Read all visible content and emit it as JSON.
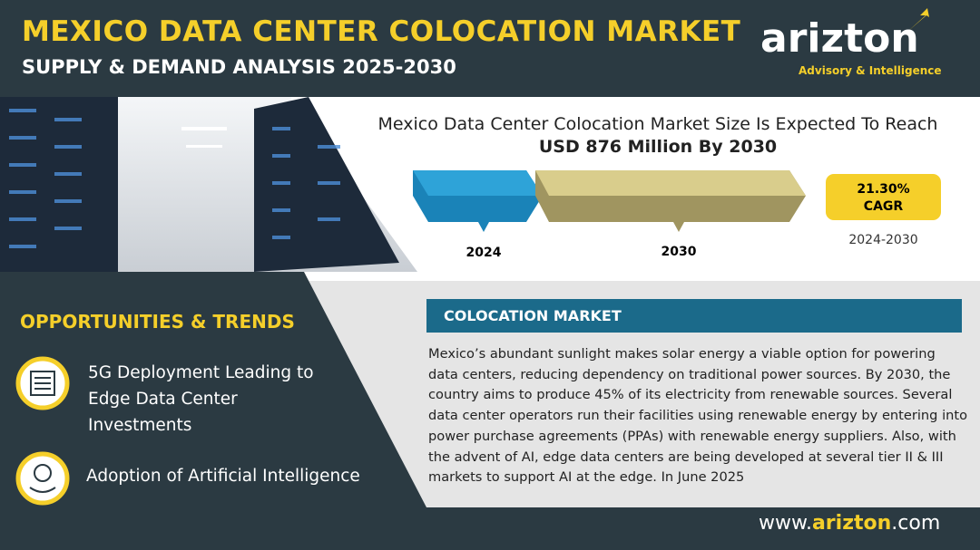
{
  "header": {
    "title": "MEXICO DATA CENTER COLOCATION MARKET",
    "subtitle": "SUPPLY & DEMAND ANALYSIS 2025-2030"
  },
  "logo": {
    "name_start": "arizt",
    "name_end": "on",
    "tagline": "Advisory & Intelligence"
  },
  "market_size": {
    "headline": "Mexico Data Center Colocation Market Size Is Expected To Reach",
    "value": "USD 876 Million By 2030",
    "start_year": "2024",
    "end_year": "2030",
    "cagr_value": "21.30%",
    "cagr_label": "CAGR",
    "cagr_period": "2024-2030"
  },
  "opportunities": {
    "title": "OPPORTUNITIES & TRENDS",
    "items": [
      "5G Deployment Leading to Edge Data Center Investments",
      "Adoption of Artificial Intelligence"
    ]
  },
  "colocation": {
    "title": "COLOCATION MARKET",
    "text": "Mexico’s abundant sunlight makes solar energy a viable option for powering data centers, reducing dependency on traditional power sources. By 2030, the country aims to produce 45% of its electricity from renewable sources. Several data center operators run their facilities using renewable energy by entering into power purchase agreements (PPAs) with renewable energy suppliers. Also, with the advent of AI, edge data centers are being developed at several tier II & III markets to support AI at the edge. In June 2025"
  },
  "footer": {
    "url_prefix": "www.",
    "url_brand": "arizton",
    "url_suffix": ".com"
  }
}
